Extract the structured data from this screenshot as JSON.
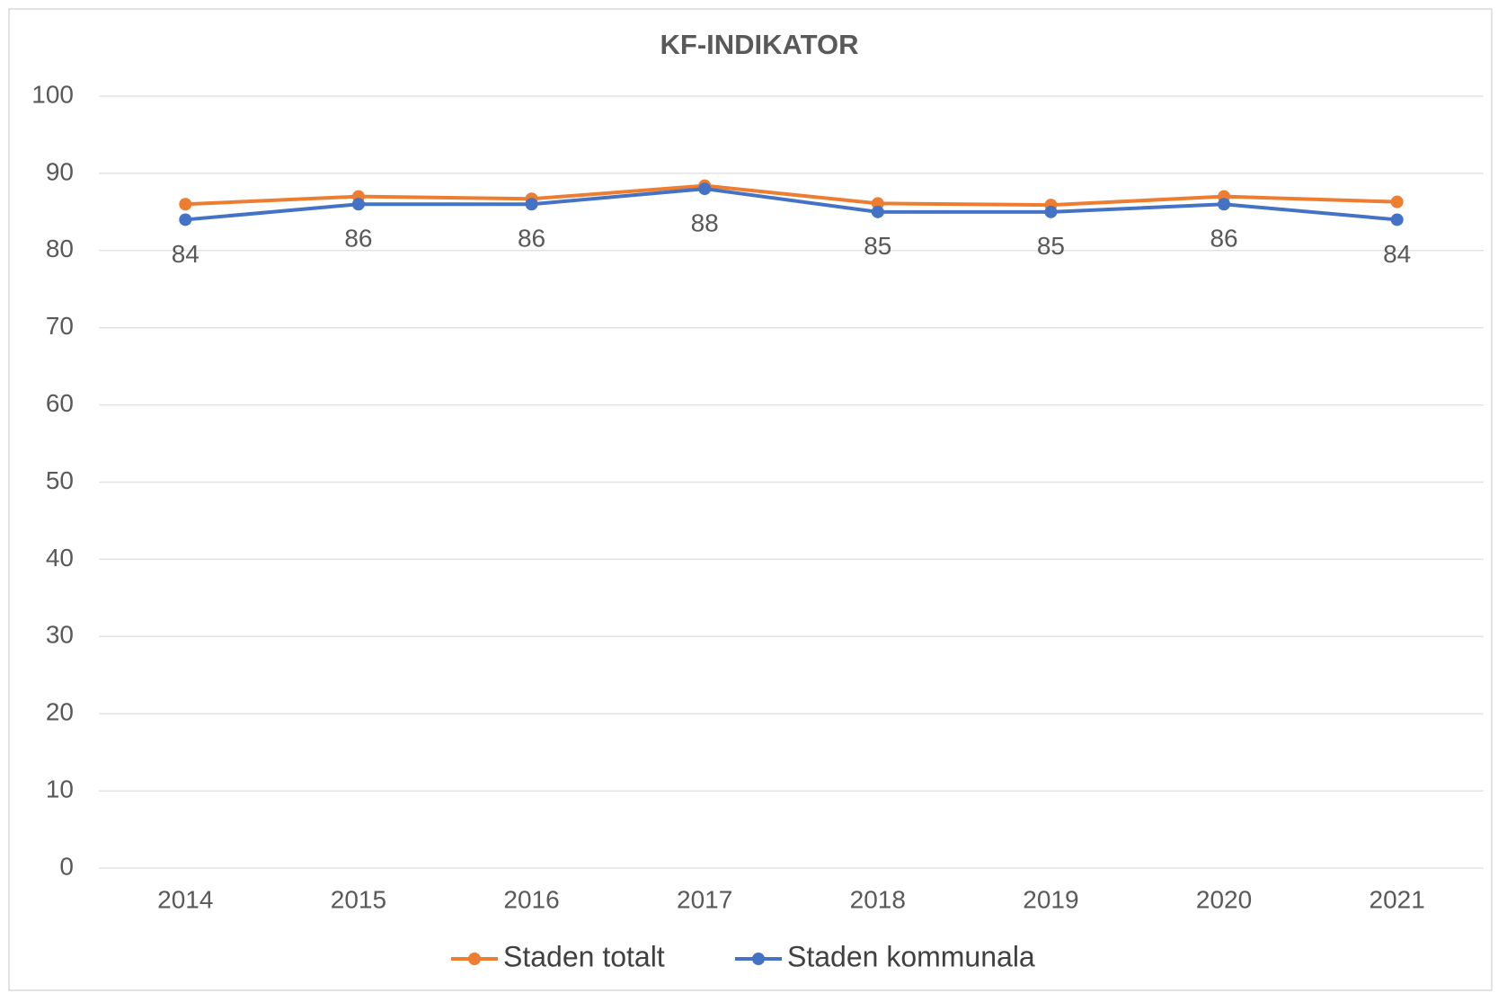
{
  "chart_data": {
    "type": "line",
    "title": "KF-INDIKATOR",
    "categories": [
      "2014",
      "2015",
      "2016",
      "2017",
      "2018",
      "2019",
      "2020",
      "2021"
    ],
    "series": [
      {
        "name": "Staden totalt",
        "color": "#ed7d31",
        "values": [
          86,
          87,
          86.7,
          88.4,
          86.1,
          85.9,
          87,
          86.3
        ]
      },
      {
        "name": "Staden kommunala",
        "color": "#4472c4",
        "values": [
          84,
          86,
          86,
          88,
          85,
          85,
          86,
          84
        ],
        "data_labels": true
      }
    ],
    "ylim": [
      0,
      100
    ],
    "yticks": [
      0,
      10,
      20,
      30,
      40,
      50,
      60,
      70,
      80,
      90,
      100
    ],
    "grid": true,
    "legend": "bottom"
  }
}
